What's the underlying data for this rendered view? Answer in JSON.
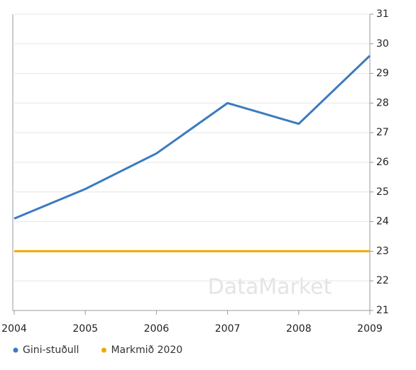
{
  "chart_data": {
    "type": "line",
    "categories": [
      "2004",
      "2005",
      "2006",
      "2007",
      "2008",
      "2009"
    ],
    "series": [
      {
        "name": "Gini-stuðull",
        "color": "#3a7bbf",
        "values": [
          24.1,
          25.1,
          26.3,
          28.0,
          27.3,
          29.6
        ]
      },
      {
        "name": "Markmið 2020",
        "color": "#f0a800",
        "values": [
          23,
          23,
          23,
          23,
          23,
          23
        ]
      }
    ],
    "ylim": [
      21,
      31
    ],
    "yticks": [
      21,
      22,
      23,
      24,
      25,
      26,
      27,
      28,
      29,
      30,
      31
    ],
    "grid": true,
    "y_axis_side": "right",
    "legend": "bottom",
    "watermark": "DataMarket"
  }
}
